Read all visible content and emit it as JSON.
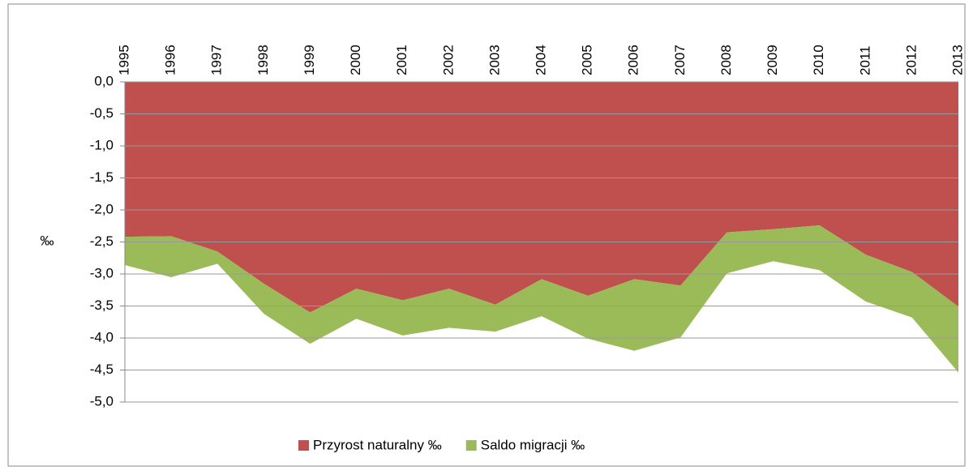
{
  "chart_data": {
    "type": "stacked-area",
    "y_label": "‰",
    "categories": [
      "1995",
      "1996",
      "1997",
      "1998",
      "1999",
      "2000",
      "2001",
      "2002",
      "2003",
      "2004",
      "2005",
      "2006",
      "2007",
      "2008",
      "2009",
      "2010",
      "2011",
      "2012",
      "2013"
    ],
    "series": [
      {
        "name": "Przyrost naturalny ‰",
        "color": "#c0504d",
        "values": [
          -2.42,
          -2.41,
          -2.65,
          -3.15,
          -3.6,
          -3.23,
          -3.41,
          -3.23,
          -3.48,
          -3.08,
          -3.34,
          -3.08,
          -3.18,
          -2.35,
          -2.3,
          -2.24,
          -2.7,
          -2.97,
          -3.51
        ]
      },
      {
        "name": "Saldo migracji ‰",
        "color": "#9bbb59",
        "values": [
          -0.44,
          -0.64,
          -0.19,
          -0.47,
          -0.49,
          -0.47,
          -0.55,
          -0.61,
          -0.42,
          -0.58,
          -0.67,
          -1.12,
          -0.81,
          -0.64,
          -0.5,
          -0.7,
          -0.73,
          -0.71,
          -1.03
        ]
      }
    ],
    "ylim": [
      -5,
      0
    ],
    "yticks": [
      {
        "value": 0,
        "label": "0,0"
      },
      {
        "value": -0.5,
        "label": "-0,5"
      },
      {
        "value": -1,
        "label": "-1,0"
      },
      {
        "value": -1.5,
        "label": "-1,5"
      },
      {
        "value": -2,
        "label": "-2,0"
      },
      {
        "value": -2.5,
        "label": "-2,5"
      },
      {
        "value": -3,
        "label": "-3,0"
      },
      {
        "value": -3.5,
        "label": "-3,5"
      },
      {
        "value": -4,
        "label": "-4,0"
      },
      {
        "value": -4.5,
        "label": "-4,5"
      },
      {
        "value": -5,
        "label": "-5,0"
      }
    ],
    "grid": true,
    "legend": "bottom"
  }
}
